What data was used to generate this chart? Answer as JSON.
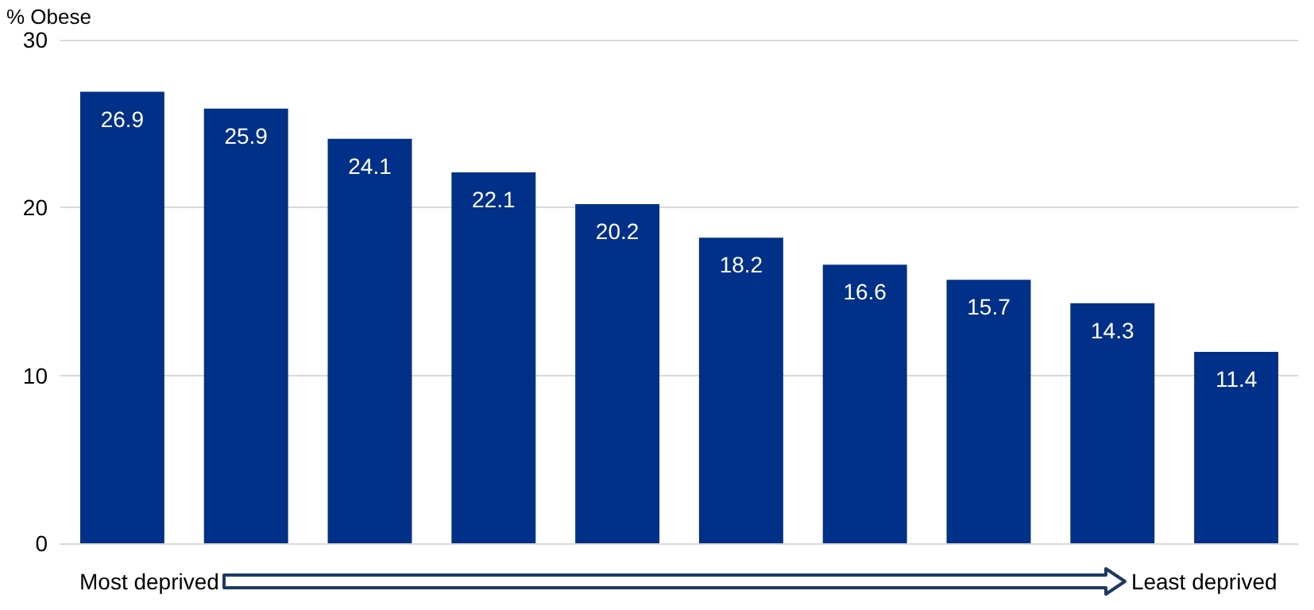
{
  "chart_data": {
    "type": "bar",
    "ylabel": "% Obese",
    "categories": [
      null,
      null,
      null,
      null,
      null,
      null,
      null,
      null,
      null,
      null
    ],
    "values": [
      26.9,
      25.9,
      24.1,
      22.1,
      20.2,
      18.2,
      16.6,
      15.7,
      14.3,
      11.4
    ],
    "color": "#003087",
    "ylim": [
      0,
      30
    ],
    "yticks": [
      0,
      10,
      20,
      30
    ],
    "grid": "y",
    "data_labels": true,
    "annotations": [
      "Most deprived",
      "Least deprived"
    ]
  }
}
